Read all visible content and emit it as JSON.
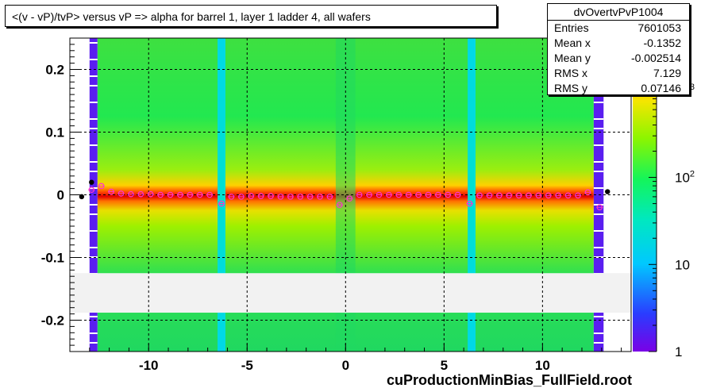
{
  "title": "<(v - vP)/tvP> versus   vP => alpha for barrel 1, layer 1 ladder 4, all wafers",
  "stats": {
    "name": "dvOvertvPvP1004",
    "rows": [
      {
        "label": "Entries",
        "value": "7601053"
      },
      {
        "label": "Mean x",
        "value": "-0.1352"
      },
      {
        "label": "Mean y",
        "value": "-0.002514"
      },
      {
        "label": "RMS x",
        "value": "7.129"
      },
      {
        "label": "RMS y",
        "value": "0.07146"
      }
    ]
  },
  "footer": "cuProductionMinBias_FullField.root",
  "chart_data": {
    "type": "heatmap",
    "title": "<(v - vP)/tvP> versus   vP => alpha for barrel 1, layer 1 ladder 4, all wafers",
    "xlabel": "",
    "ylabel": "",
    "xlim": [
      -14,
      14.5
    ],
    "ylim": [
      -0.25,
      0.25
    ],
    "x_ticks": [
      -10,
      -5,
      0,
      5,
      10
    ],
    "x_tick_labels": [
      "-10",
      "-5",
      "0",
      "5",
      "10"
    ],
    "y_ticks": [
      -0.2,
      -0.1,
      0,
      0.1,
      0.2
    ],
    "y_tick_labels": [
      "-0.2",
      "-0.1",
      "0",
      "0.1",
      "0.2"
    ],
    "grid": true,
    "colorbar": {
      "scale": "log",
      "ticks": [
        1,
        10,
        100,
        1000
      ],
      "tick_labels": [
        "1",
        "10",
        "10^2",
        "10^3"
      ]
    },
    "empty_y_band": [
      -0.188,
      -0.125
    ],
    "low_x_columns": [
      [
        -13.0,
        -12.6
      ],
      [
        -6.5,
        -6.1
      ],
      [
        6.2,
        6.6
      ],
      [
        12.6,
        13.1
      ]
    ],
    "mean_profile": [
      {
        "x": -13.4,
        "y": -0.003,
        "series": "black"
      },
      {
        "x": -12.9,
        "y": 0.02,
        "series": "black"
      },
      {
        "x": 13.3,
        "y": 0.005,
        "series": "black"
      },
      {
        "x": -12.9,
        "y": 0.008,
        "series": "pink"
      },
      {
        "x": -12.4,
        "y": 0.014,
        "series": "pink"
      },
      {
        "x": -11.9,
        "y": 0.005,
        "series": "pink"
      },
      {
        "x": -11.4,
        "y": 0.002,
        "series": "pink"
      },
      {
        "x": -10.9,
        "y": 0.001,
        "series": "pink"
      },
      {
        "x": -10.4,
        "y": 0.001,
        "series": "pink"
      },
      {
        "x": -9.9,
        "y": 0.001,
        "series": "pink"
      },
      {
        "x": -9.4,
        "y": 0.0,
        "series": "pink"
      },
      {
        "x": -8.9,
        "y": 0.0,
        "series": "pink"
      },
      {
        "x": -8.4,
        "y": 0.0,
        "series": "pink"
      },
      {
        "x": -7.9,
        "y": 0.0,
        "series": "pink"
      },
      {
        "x": -7.4,
        "y": 0.0,
        "series": "pink"
      },
      {
        "x": -6.9,
        "y": 0.0,
        "series": "pink"
      },
      {
        "x": -6.3,
        "y": -0.014,
        "series": "pink"
      },
      {
        "x": -5.8,
        "y": -0.003,
        "series": "pink"
      },
      {
        "x": -5.3,
        "y": -0.003,
        "series": "pink"
      },
      {
        "x": -4.8,
        "y": -0.002,
        "series": "pink"
      },
      {
        "x": -4.3,
        "y": -0.002,
        "series": "pink"
      },
      {
        "x": -3.8,
        "y": -0.002,
        "series": "pink"
      },
      {
        "x": -3.3,
        "y": -0.003,
        "series": "pink"
      },
      {
        "x": -2.8,
        "y": -0.003,
        "series": "pink"
      },
      {
        "x": -2.3,
        "y": -0.003,
        "series": "pink"
      },
      {
        "x": -1.8,
        "y": -0.003,
        "series": "pink"
      },
      {
        "x": -1.3,
        "y": -0.003,
        "series": "pink"
      },
      {
        "x": -0.8,
        "y": -0.003,
        "series": "pink"
      },
      {
        "x": -0.3,
        "y": -0.016,
        "series": "pink"
      },
      {
        "x": 0.2,
        "y": -0.006,
        "series": "pink"
      },
      {
        "x": 0.7,
        "y": 0.0,
        "series": "pink"
      },
      {
        "x": 1.2,
        "y": 0.0,
        "series": "pink"
      },
      {
        "x": 1.7,
        "y": 0.0,
        "series": "pink"
      },
      {
        "x": 2.2,
        "y": 0.0,
        "series": "pink"
      },
      {
        "x": 2.7,
        "y": 0.0,
        "series": "pink"
      },
      {
        "x": 3.2,
        "y": 0.0,
        "series": "pink"
      },
      {
        "x": 3.7,
        "y": 0.0,
        "series": "pink"
      },
      {
        "x": 4.2,
        "y": 0.0,
        "series": "pink"
      },
      {
        "x": 4.7,
        "y": 0.0,
        "series": "pink"
      },
      {
        "x": 5.2,
        "y": 0.0,
        "series": "pink"
      },
      {
        "x": 5.7,
        "y": 0.0,
        "series": "pink"
      },
      {
        "x": 6.3,
        "y": -0.014,
        "series": "pink"
      },
      {
        "x": 6.8,
        "y": -0.001,
        "series": "pink"
      },
      {
        "x": 7.3,
        "y": -0.001,
        "series": "pink"
      },
      {
        "x": 7.8,
        "y": -0.001,
        "series": "pink"
      },
      {
        "x": 8.3,
        "y": -0.001,
        "series": "pink"
      },
      {
        "x": 8.8,
        "y": -0.001,
        "series": "pink"
      },
      {
        "x": 9.3,
        "y": -0.001,
        "series": "pink"
      },
      {
        "x": 9.8,
        "y": -0.001,
        "series": "pink"
      },
      {
        "x": 10.3,
        "y": -0.001,
        "series": "pink"
      },
      {
        "x": 10.8,
        "y": -0.001,
        "series": "pink"
      },
      {
        "x": 11.3,
        "y": -0.001,
        "series": "pink"
      },
      {
        "x": 11.8,
        "y": -0.001,
        "series": "pink"
      },
      {
        "x": 12.3,
        "y": 0.004,
        "series": "pink"
      },
      {
        "x": 12.9,
        "y": -0.02,
        "series": "pink"
      }
    ]
  }
}
